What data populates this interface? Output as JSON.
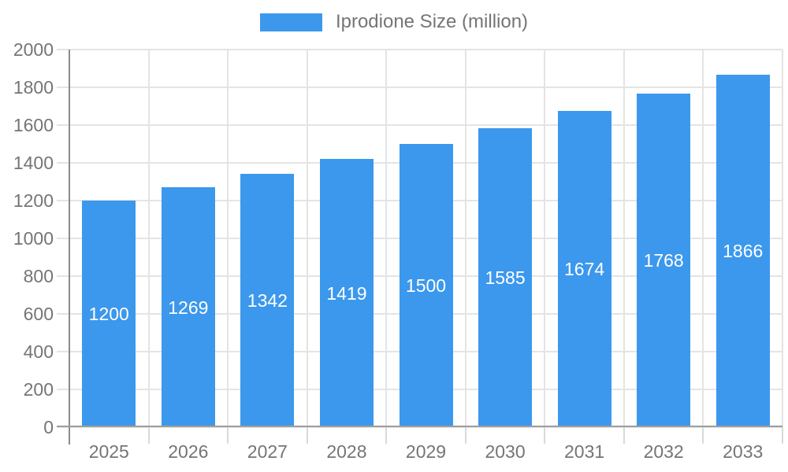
{
  "legend": {
    "label": "Iprodione Size (million)",
    "swatch_color": "#3b98ec"
  },
  "chart_data": {
    "type": "bar",
    "title": "Iprodione Size (million)",
    "categories": [
      "2025",
      "2026",
      "2027",
      "2028",
      "2029",
      "2030",
      "2031",
      "2032",
      "2033"
    ],
    "series": [
      {
        "name": "Iprodione Size (million)",
        "values": [
          1200,
          1269,
          1342,
          1419,
          1500,
          1585,
          1674,
          1768,
          1866
        ]
      }
    ],
    "xlabel": "",
    "ylabel": "",
    "ylim": [
      0,
      2000
    ],
    "ytick_step": 200,
    "yticks": [
      0,
      200,
      400,
      600,
      800,
      1000,
      1200,
      1400,
      1600,
      1800,
      2000
    ],
    "grid": true,
    "legend_position": "top",
    "bar_labels_inside": true,
    "colors": {
      "bar": "#3b98ec",
      "bar_label": "#ffffff",
      "axis_text": "#757575",
      "grid_line": "#e4e4e4",
      "y_axis_line": "#8b8b8b",
      "x_axis_line": "#9e9e9e",
      "x_tick_line": "#d9d9d9"
    }
  }
}
